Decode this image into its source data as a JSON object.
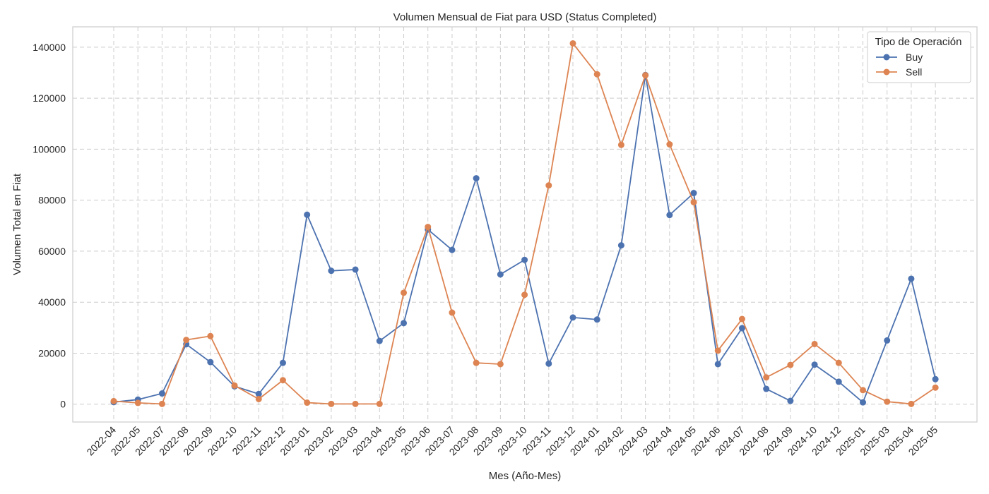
{
  "chart_data": {
    "type": "line",
    "title": "Volumen Mensual de Fiat para USD (Status Completed)",
    "xlabel": "Mes (Año-Mes)",
    "ylabel": "Volumen Total en Fiat",
    "categories": [
      "2022-04",
      "2022-05",
      "2022-07",
      "2022-08",
      "2022-09",
      "2022-10",
      "2022-11",
      "2022-12",
      "2023-01",
      "2023-02",
      "2023-03",
      "2023-04",
      "2023-05",
      "2023-06",
      "2023-07",
      "2023-08",
      "2023-09",
      "2023-10",
      "2023-11",
      "2023-12",
      "2024-01",
      "2024-02",
      "2024-03",
      "2024-04",
      "2024-05",
      "2024-06",
      "2024-07",
      "2024-08",
      "2024-09",
      "2024-10",
      "2024-12",
      "2025-01",
      "2025-03",
      "2025-04",
      "2025-05"
    ],
    "ylim": [
      -7000,
      148000
    ],
    "yticks": [
      0,
      20000,
      40000,
      60000,
      80000,
      100000,
      120000,
      140000
    ],
    "grid": true,
    "legend": {
      "title": "Tipo de Operación",
      "placement": "top-right"
    },
    "series": [
      {
        "name": "Buy",
        "color": "#4c72b0",
        "values": [
          800,
          1800,
          4200,
          23500,
          16500,
          7000,
          4000,
          16200,
          74300,
          52300,
          52800,
          24800,
          31800,
          68500,
          60500,
          88600,
          50900,
          56600,
          15900,
          34000,
          33200,
          62300,
          129100,
          74200,
          82800,
          15700,
          29800,
          6000,
          1300,
          15500,
          8800,
          700,
          25000,
          49200,
          9800
        ]
      },
      {
        "name": "Sell",
        "color": "#dd8452",
        "values": [
          1200,
          500,
          100,
          25200,
          26700,
          7300,
          2000,
          9400,
          600,
          100,
          100,
          100,
          43700,
          69500,
          35900,
          16200,
          15700,
          42900,
          85800,
          141500,
          129400,
          101700,
          129000,
          101900,
          79200,
          21000,
          33400,
          10500,
          15400,
          23600,
          16200,
          5500,
          1000,
          100,
          6500
        ]
      }
    ]
  }
}
